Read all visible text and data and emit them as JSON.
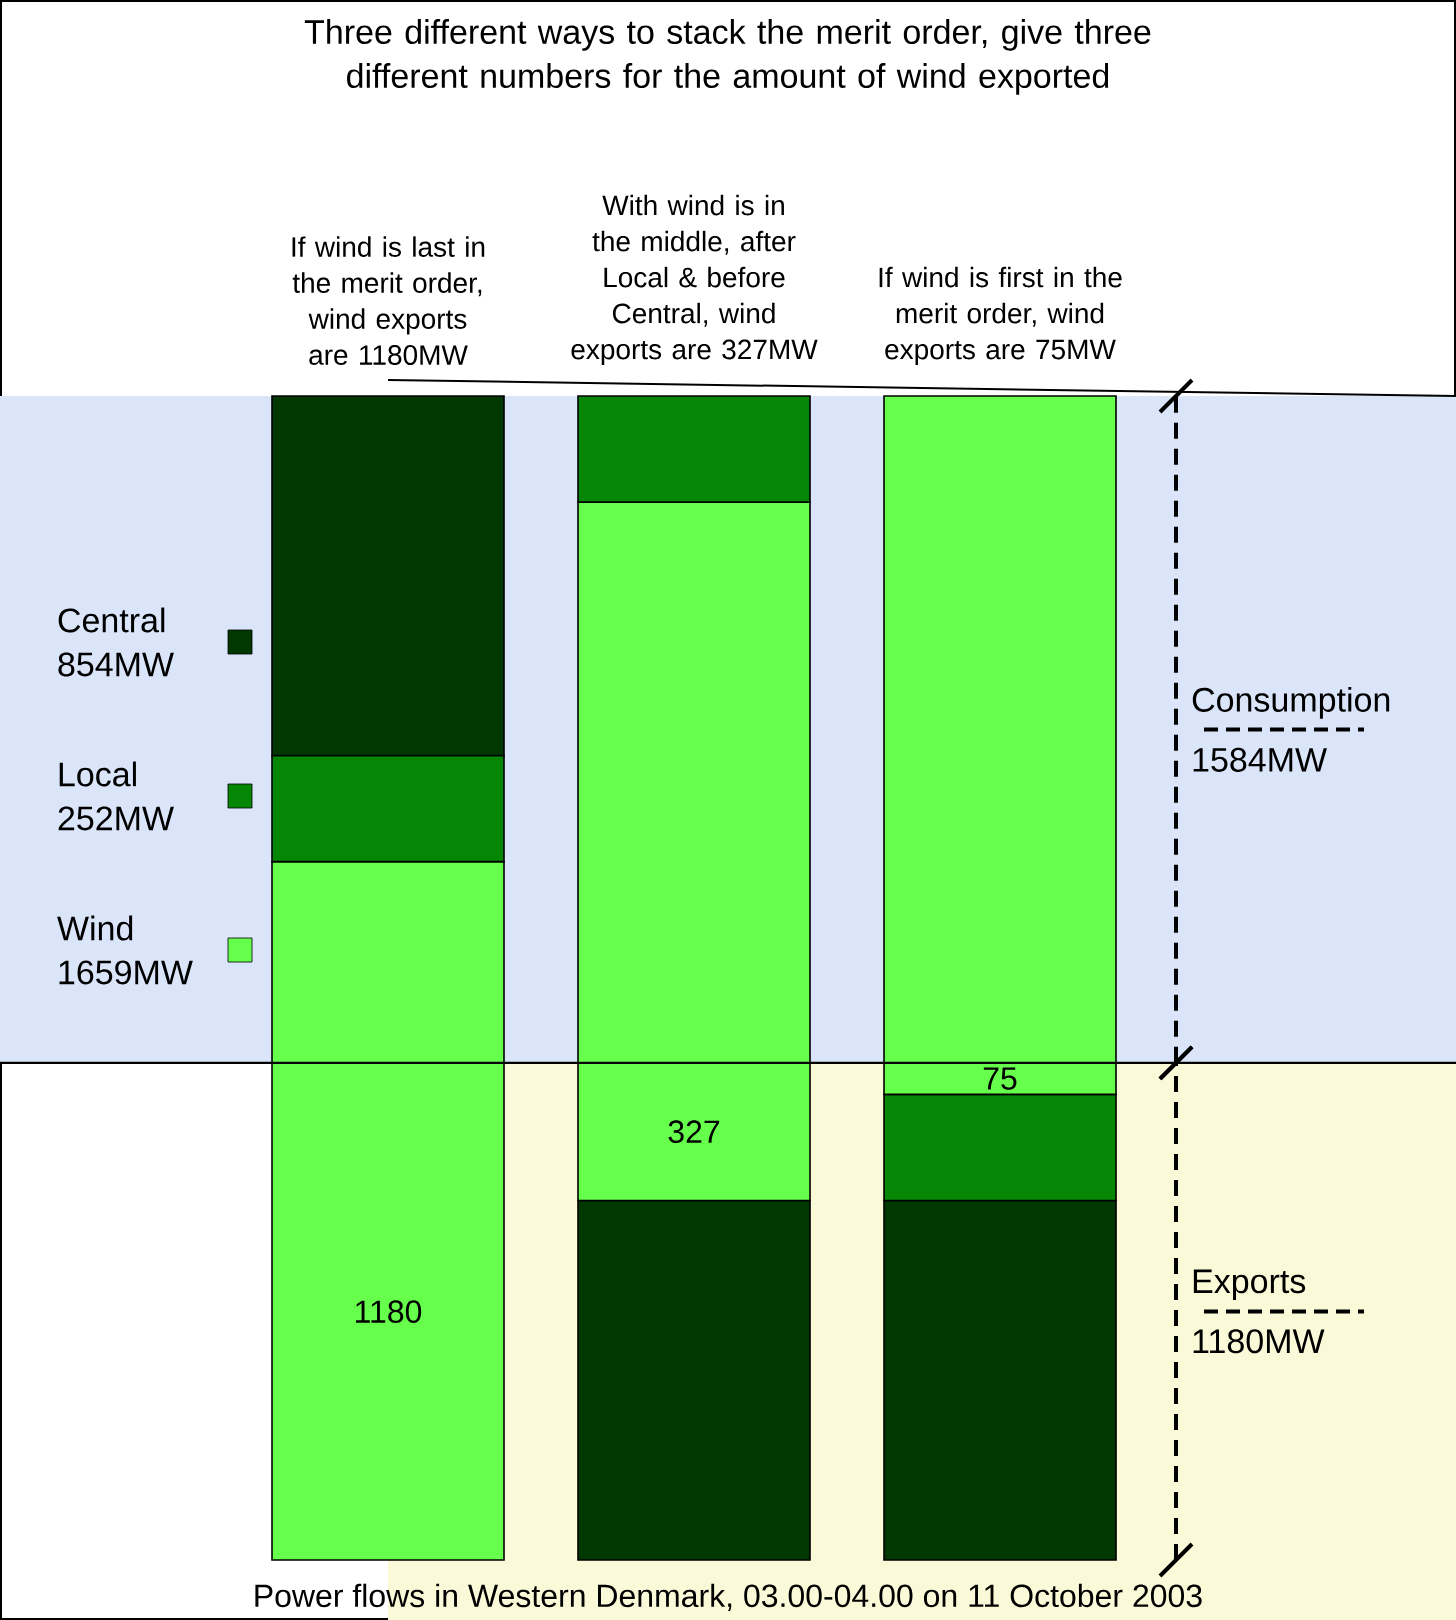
{
  "chart_data": {
    "type": "bar",
    "stacked": true,
    "title": "Three different ways to stack the merit order, give three different numbers for the amount of wind exported",
    "categories": [
      "If wind is last in the merit order, wind exports are 1180MW",
      "With wind is in the middle, after Local & before Central, wind exports are 327MW",
      "If wind is first in the merit order, wind exports are 75MW"
    ],
    "series": [
      {
        "colors": [
          "#66ff4c",
          "#013801",
          "#013801"
        ],
        "values": [
          1180,
          854,
          854
        ],
        "value_labels": [
          "1180",
          null,
          null
        ]
      },
      {
        "colors": [
          "#66ff4c",
          "#66ff4c",
          "#058705"
        ],
        "values": [
          479,
          327,
          252
        ],
        "value_labels": [
          null,
          "327",
          null
        ]
      },
      {
        "colors": [
          "#058705",
          "#66ff4c",
          "#66ff4c"
        ],
        "values": [
          252,
          1332,
          75
        ],
        "value_labels": [
          null,
          null,
          "75"
        ]
      },
      {
        "colors": [
          "#013801",
          "#058705",
          "#66ff4c"
        ],
        "values": [
          854,
          252,
          1584
        ]
      }
    ],
    "bands": [
      {
        "axis": "y",
        "from": 1181,
        "to": 2765,
        "label": "Consumption 1584MW",
        "color": "#dbe5fa"
      },
      {
        "axis": "y",
        "from": 0,
        "to": 1181,
        "label": "Exports 1180MW",
        "color": "#fbfad8"
      }
    ],
    "ref_lines": [
      {
        "axis": "y",
        "value": 1181,
        "color": "#000000"
      }
    ],
    "annotations": [
      "Central 854MW",
      "Local 252MW",
      "Wind 1659MW",
      "Power flows in Western Denmark, 03.00-04.00 on 11 October 2003"
    ]
  }
}
